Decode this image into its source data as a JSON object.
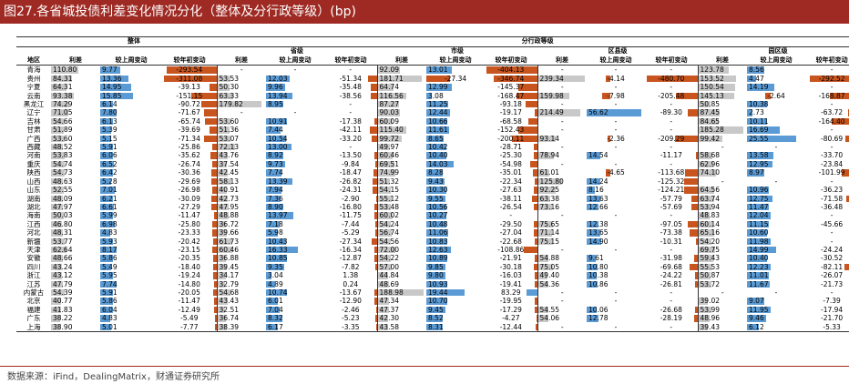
{
  "title": "图27.各省城投债利差变化情况分化（整体及分行政等级）(bp)",
  "source": "数据来源：iFind，DealingMatrix，财通证券研究所",
  "colors": {
    "title_bg": "#9e2a23",
    "pos_bar": "#5b9bd5",
    "neg_bar": "#c8541e",
    "gray_bar": "#c8c8c8"
  },
  "headers": {
    "overall": "整体",
    "admin": "分行政等级",
    "groups": [
      "省级",
      "市级",
      "区县级",
      "园区级"
    ],
    "region": "地区",
    "cols": [
      "利差",
      "较上周变动",
      "较年初变动"
    ]
  },
  "rows": [
    {
      "region": "青海",
      "o": [
        "110.80",
        "9.77",
        "-293.54"
      ],
      "p": [
        "-",
        "-",
        "-"
      ],
      "m": [
        "92.09",
        "13.01",
        "-404.13"
      ],
      "d": [
        "-",
        "-",
        "-"
      ],
      "y": [
        "123.78",
        "8.56",
        "-"
      ]
    },
    {
      "region": "贵州",
      "o": [
        "84.31",
        "13.36",
        "-311.08"
      ],
      "p": [
        "53.53",
        "12.03",
        "-51.34"
      ],
      "m": [
        "181.71",
        "-27.34",
        "-346.74"
      ],
      "d": [
        "239.34",
        "-4.14",
        "-480.70"
      ],
      "y": [
        "153.52",
        "4.47",
        "-292.52"
      ]
    },
    {
      "region": "宁夏",
      "o": [
        "64.31",
        "14.95",
        "-39.13"
      ],
      "p": [
        "50.30",
        "9.96",
        "-35.48"
      ],
      "m": [
        "64.74",
        "12.99",
        "-145.37"
      ],
      "d": [
        "-",
        "-",
        "-"
      ],
      "y": [
        "150.54",
        "14.19",
        "-"
      ]
    },
    {
      "region": "云南",
      "o": [
        "93.38",
        "15.85",
        "-151.15"
      ],
      "p": [
        "63.33",
        "13.94",
        "-38.56"
      ],
      "m": [
        "116.56",
        "3.08",
        "-168.47"
      ],
      "d": [
        "159.98",
        "-7.98",
        "-205.48"
      ],
      "y": [
        "145.13",
        "-2.64",
        "-168.87"
      ]
    },
    {
      "region": "黑龙江",
      "o": [
        "74.29",
        "6.14",
        "-90.72"
      ],
      "p": [
        "179.82",
        "8.95",
        "-"
      ],
      "m": [
        "87.27",
        "11.25",
        "-93.18"
      ],
      "d": [
        "-",
        "-",
        "-"
      ],
      "y": [
        "50.85",
        "10.38",
        "-"
      ]
    },
    {
      "region": "辽宁",
      "o": [
        "71.05",
        "7.80",
        "-71.67"
      ],
      "p": [
        "-",
        "-",
        "-"
      ],
      "m": [
        "90.03",
        "12.44",
        "-19.17"
      ],
      "d": [
        "214.49",
        "56.62",
        "-89.30"
      ],
      "y": [
        "87.45",
        "2.73",
        "-63.72"
      ]
    },
    {
      "region": "吉林",
      "o": [
        "54.66",
        "6.13",
        "-65.74"
      ],
      "p": [
        "53.60",
        "10.91",
        "-17.38"
      ],
      "m": [
        "60.09",
        "10.66",
        "-68.58"
      ],
      "d": [
        "-",
        "-",
        "-"
      ],
      "y": [
        "84.65",
        "10.11",
        "-164.40"
      ]
    },
    {
      "region": "甘肃",
      "o": [
        "51.89",
        "5.39",
        "-39.69"
      ],
      "p": [
        "51.36",
        "7.44",
        "-42.11"
      ],
      "m": [
        "115.40",
        "11.61",
        "-152.43"
      ],
      "d": [
        "-",
        "-",
        "-"
      ],
      "y": [
        "185.28",
        "16.69",
        "-"
      ]
    },
    {
      "region": "广西",
      "o": [
        "53.60",
        "5.15",
        "-71.34"
      ],
      "p": [
        "53.07",
        "10.54",
        "-33.20"
      ],
      "m": [
        "99.72",
        "8.65",
        "-200.11"
      ],
      "d": [
        "93.14",
        "-2.36",
        "-209.29"
      ],
      "y": [
        "99.42",
        "25.55",
        "-80.69"
      ]
    },
    {
      "region": "西藏",
      "o": [
        "48.52",
        "5.91",
        "-25.86"
      ],
      "p": [
        "72.13",
        "13.00",
        "-"
      ],
      "m": [
        "49.97",
        "10.42",
        "-28.71"
      ],
      "d": [
        "-",
        "-",
        "-"
      ],
      "y": [
        "-",
        "-",
        "-"
      ]
    },
    {
      "region": "河南",
      "o": [
        "53.83",
        "6.06",
        "-35.62"
      ],
      "p": [
        "43.76",
        "8.92",
        "-13.50"
      ],
      "m": [
        "60.46",
        "10.40",
        "-25.30"
      ],
      "d": [
        "78.94",
        "14.54",
        "-11.17"
      ],
      "y": [
        "58.68",
        "13.58",
        "-33.70"
      ]
    },
    {
      "region": "重庆",
      "o": [
        "54.74",
        "6.52",
        "-26.74"
      ],
      "p": [
        "37.54",
        "9.73",
        "-9.84"
      ],
      "m": [
        "69.51",
        "14.03",
        "-54.98"
      ],
      "d": [
        "-",
        "-",
        "-"
      ],
      "y": [
        "62.96",
        "12.95",
        "-23.84"
      ]
    },
    {
      "region": "陕西",
      "o": [
        "54.73",
        "6.42",
        "-30.36"
      ],
      "p": [
        "42.45",
        "7.74",
        "-18.47"
      ],
      "m": [
        "74.99",
        "8.28",
        "-35.01"
      ],
      "d": [
        "61.01",
        "-4.65",
        "-113.68"
      ],
      "y": [
        "74.10",
        "8.97",
        "-101.99"
      ]
    },
    {
      "region": "山西",
      "o": [
        "48.63",
        "5.28",
        "-29.69"
      ],
      "p": [
        "58.13",
        "13.39",
        "-26.82"
      ],
      "m": [
        "51.32",
        "9.43",
        "-22.34"
      ],
      "d": [
        "125.80",
        "14.24",
        "-125.32"
      ],
      "y": [
        "-",
        "-",
        "-"
      ]
    },
    {
      "region": "山东",
      "o": [
        "52.55",
        "7.01",
        "-26.98"
      ],
      "p": [
        "40.91",
        "7.94",
        "-24.31"
      ],
      "m": [
        "54.15",
        "10.30",
        "-27.63"
      ],
      "d": [
        "92.25",
        "8.16",
        "-124.21"
      ],
      "y": [
        "64.56",
        "10.96",
        "-36.23"
      ]
    },
    {
      "region": "湖南",
      "o": [
        "48.09",
        "6.21",
        "-30.09"
      ],
      "p": [
        "42.73",
        "7.36",
        "-2.90"
      ],
      "m": [
        "55.12",
        "9.55",
        "-38.11"
      ],
      "d": [
        "63.38",
        "13.63",
        "-57.79"
      ],
      "y": [
        "63.74",
        "12.75",
        "-71.58"
      ]
    },
    {
      "region": "湖北",
      "o": [
        "47.97",
        "6.61",
        "-27.29"
      ],
      "p": [
        "47.95",
        "8.90",
        "-16.80"
      ],
      "m": [
        "53.48",
        "10.56",
        "-26.54"
      ],
      "d": [
        "73.16",
        "12.66",
        "-57.69"
      ],
      "y": [
        "53.94",
        "11.47",
        "-36.48"
      ]
    },
    {
      "region": "海南",
      "o": [
        "50.03",
        "5.99",
        "-11.47"
      ],
      "p": [
        "48.88",
        "13.97",
        "-11.75"
      ],
      "m": [
        "60.02",
        "10.27",
        "-"
      ],
      "d": [
        "-",
        "-",
        "-"
      ],
      "y": [
        "48.83",
        "12.04",
        "-"
      ]
    },
    {
      "region": "江西",
      "o": [
        "46.80",
        "6.98",
        "-25.80"
      ],
      "p": [
        "36.72",
        "7.18",
        "-7.44"
      ],
      "m": [
        "54.24",
        "10.48",
        "-29.50"
      ],
      "d": [
        "75.65",
        "12.38",
        "-97.05"
      ],
      "y": [
        "60.14",
        "11.15",
        "-45.66"
      ]
    },
    {
      "region": "河北",
      "o": [
        "48.31",
        "4.83",
        "-23.33"
      ],
      "p": [
        "39.66",
        "5.98",
        "-5.29"
      ],
      "m": [
        "56.74",
        "11.06",
        "-27.04"
      ],
      "d": [
        "71.14",
        "13.65",
        "-73.38"
      ],
      "y": [
        "65.16",
        "10.60",
        "-"
      ]
    },
    {
      "region": "新疆",
      "o": [
        "53.77",
        "5.93",
        "-20.42"
      ],
      "p": [
        "61.73",
        "10.43",
        "-27.34"
      ],
      "m": [
        "54.56",
        "10.83",
        "-22.68"
      ],
      "d": [
        "75.15",
        "14.90",
        "-10.31"
      ],
      "y": [
        "54.20",
        "11.98",
        "-"
      ]
    },
    {
      "region": "天津",
      "o": [
        "62.64",
        "8.17",
        "-23.15"
      ],
      "p": [
        "60.46",
        "16.33",
        "-16.34"
      ],
      "m": [
        "72.00",
        "12.63",
        "-108.86"
      ],
      "d": [
        "-",
        "-",
        "-"
      ],
      "y": [
        "69.75",
        "14.99",
        "-24.24"
      ]
    },
    {
      "region": "安徽",
      "o": [
        "48.66",
        "5.86",
        "-20.35"
      ],
      "p": [
        "36.88",
        "10.85",
        "-12.87"
      ],
      "m": [
        "54.22",
        "10.89",
        "-21.91"
      ],
      "d": [
        "54.88",
        "9.61",
        "-31.98"
      ],
      "y": [
        "59.43",
        "10.40",
        "-30.52"
      ]
    },
    {
      "region": "四川",
      "o": [
        "43.24",
        "5.49",
        "-18.40"
      ],
      "p": [
        "39.45",
        "9.35",
        "-7.82"
      ],
      "m": [
        "57.00",
        "9.85",
        "-30.18"
      ],
      "d": [
        "75.05",
        "10.80",
        "-69.68"
      ],
      "y": [
        "55.53",
        "12.23",
        "-82.11"
      ]
    },
    {
      "region": "浙江",
      "o": [
        "43.12",
        "5.95",
        "-19.24"
      ],
      "p": [
        "34.17",
        "3.04",
        "1.38"
      ],
      "m": [
        "44.84",
        "9.80",
        "-16.03"
      ],
      "d": [
        "49.40",
        "10.38",
        "-24.22"
      ],
      "y": [
        "50.87",
        "11.01",
        "-26.07"
      ]
    },
    {
      "region": "江苏",
      "o": [
        "47.79",
        "7.74",
        "-14.80"
      ],
      "p": [
        "32.79",
        "4.89",
        "0.24"
      ],
      "m": [
        "48.69",
        "10.93",
        "-19.41"
      ],
      "d": [
        "54.36",
        "10.86",
        "-26.81"
      ],
      "y": [
        "53.72",
        "11.67",
        "-21.73"
      ]
    },
    {
      "region": "内蒙古",
      "o": [
        "54.39",
        "5.91",
        "-20.05"
      ],
      "p": [
        "54.68",
        "10.74",
        "-13.67"
      ],
      "m": [
        "188.98",
        "19.44",
        "83.29"
      ],
      "d": [
        "-",
        "-",
        "-"
      ],
      "y": [
        "-",
        "-",
        "-"
      ]
    },
    {
      "region": "北京",
      "o": [
        "40.77",
        "5.86",
        "-11.47"
      ],
      "p": [
        "43.43",
        "6.01",
        "-12.90"
      ],
      "m": [
        "47.34",
        "10.70",
        "-19.95"
      ],
      "d": [
        "-",
        "-",
        "-"
      ],
      "y": [
        "39.02",
        "9.07",
        "-7.39"
      ]
    },
    {
      "region": "福建",
      "o": [
        "41.83",
        "6.04",
        "-12.49"
      ],
      "p": [
        "32.51",
        "7.04",
        "-2.46"
      ],
      "m": [
        "47.37",
        "9.45",
        "-17.29"
      ],
      "d": [
        "54.55",
        "10.06",
        "-26.68"
      ],
      "y": [
        "53.99",
        "11.95",
        "-17.94"
      ]
    },
    {
      "region": "广东",
      "o": [
        "38.22",
        "4.83",
        "-5.49"
      ],
      "p": [
        "36.74",
        "8.32",
        "-5.23"
      ],
      "m": [
        "42.30",
        "8.52",
        "-4.27"
      ],
      "d": [
        "54.06",
        "12.78",
        "-28.19"
      ],
      "y": [
        "48.96",
        "9.46",
        "-21.70"
      ]
    },
    {
      "region": "上海",
      "o": [
        "38.90",
        "5.01",
        "-7.77"
      ],
      "p": [
        "38.39",
        "6.17",
        "-3.35"
      ],
      "m": [
        "43.58",
        "8.31",
        "-12.44"
      ],
      "d": [
        "-",
        "-",
        "-"
      ],
      "y": [
        "39.43",
        "6.12",
        "-5.33"
      ]
    }
  ]
}
